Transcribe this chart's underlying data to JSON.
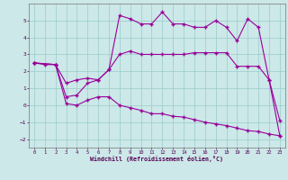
{
  "xlabel": "Windchill (Refroidissement éolien,°C)",
  "bg_color": "#cce8e8",
  "line_color": "#990099",
  "grid_color": "#99cccc",
  "xlim": [
    -0.5,
    23.5
  ],
  "ylim": [
    -2.5,
    6.0
  ],
  "xticks": [
    0,
    1,
    2,
    3,
    4,
    5,
    6,
    7,
    8,
    9,
    10,
    11,
    12,
    13,
    14,
    15,
    16,
    17,
    18,
    19,
    20,
    21,
    22,
    23
  ],
  "yticks": [
    -2,
    -1,
    0,
    1,
    2,
    3,
    4,
    5
  ],
  "series1_x": [
    0,
    1,
    2,
    3,
    4,
    5,
    6,
    7,
    8,
    9,
    10,
    11,
    12,
    13,
    14,
    15,
    16,
    17,
    18,
    19,
    20,
    21,
    22,
    23
  ],
  "series1_y": [
    2.5,
    2.4,
    2.4,
    1.3,
    1.5,
    1.6,
    1.5,
    2.1,
    3.0,
    3.2,
    3.0,
    3.0,
    3.0,
    3.0,
    3.0,
    3.1,
    3.1,
    3.1,
    3.1,
    2.3,
    2.3,
    2.3,
    1.5,
    -0.9
  ],
  "series2_x": [
    0,
    2,
    3,
    4,
    5,
    6,
    7,
    8,
    9,
    10,
    11,
    12,
    13,
    14,
    15,
    16,
    17,
    18,
    19,
    20,
    21,
    22,
    23
  ],
  "series2_y": [
    2.5,
    2.4,
    0.5,
    0.6,
    1.3,
    1.5,
    2.1,
    5.3,
    5.1,
    4.8,
    4.8,
    5.5,
    4.8,
    4.8,
    4.6,
    4.6,
    5.0,
    4.6,
    3.8,
    5.1,
    4.6,
    1.5,
    -1.8
  ],
  "series3_x": [
    0,
    2,
    3,
    4,
    5,
    6,
    7,
    8,
    9,
    10,
    11,
    12,
    13,
    14,
    15,
    16,
    17,
    18,
    19,
    20,
    21,
    22,
    23
  ],
  "series3_y": [
    2.5,
    2.4,
    0.1,
    0.0,
    0.3,
    0.5,
    0.5,
    0.0,
    -0.15,
    -0.3,
    -0.5,
    -0.5,
    -0.65,
    -0.7,
    -0.85,
    -1.0,
    -1.1,
    -1.2,
    -1.35,
    -1.5,
    -1.55,
    -1.7,
    -1.8
  ]
}
